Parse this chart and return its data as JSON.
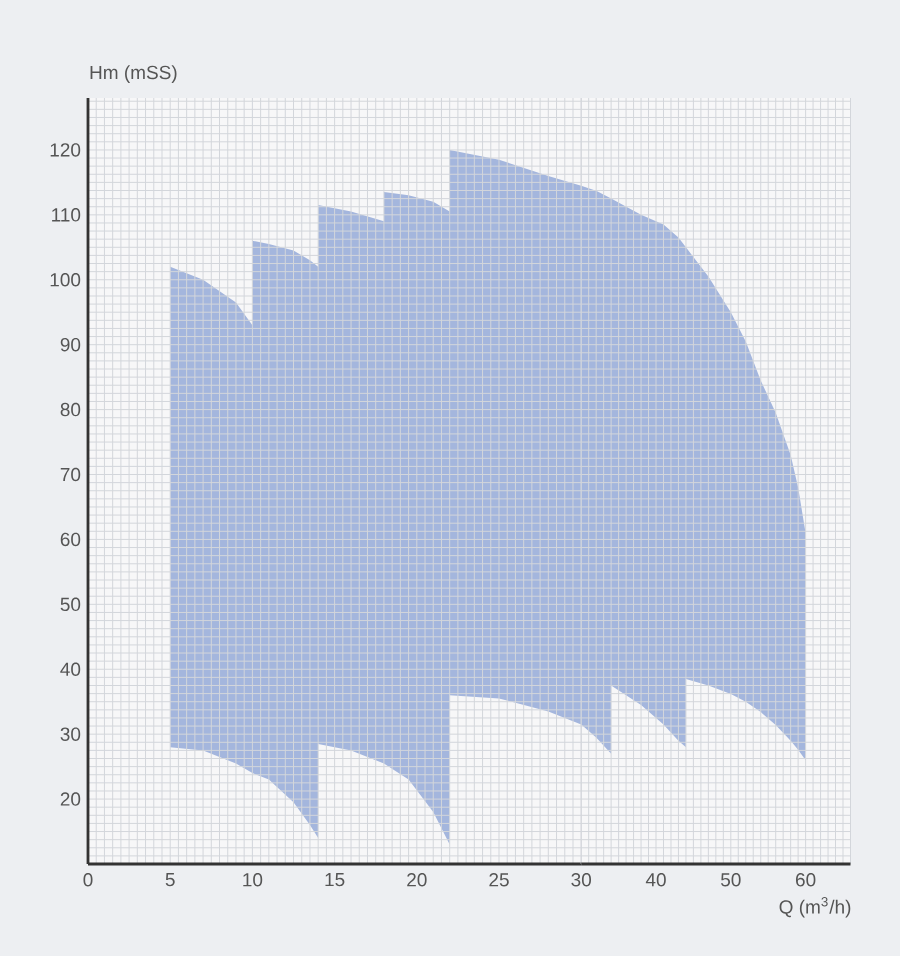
{
  "chart_data": [
    {
      "type": "area",
      "ylabel": "Hm (mSS)",
      "xlim": [
        0,
        30
      ],
      "ylim": [
        10,
        128
      ],
      "xticks": [
        0,
        5,
        10,
        15,
        20,
        25,
        30
      ],
      "yticks": [
        20,
        30,
        40,
        50,
        60,
        70,
        80,
        90,
        100,
        110,
        120
      ],
      "grid": true,
      "series": [
        {
          "color": "#a4b6dd",
          "x": [
            5,
            7,
            9,
            10,
            10,
            11,
            12.5,
            13.5,
            14,
            14,
            16,
            18,
            18,
            19.5,
            21,
            22,
            22,
            25,
            28,
            30
          ],
          "values": [
            null,
            null,
            null,
            null,
            null,
            null,
            null,
            null,
            null,
            null,
            null,
            null,
            null,
            null,
            null,
            null,
            null,
            null,
            null,
            null
          ],
          "upper": [
            102,
            100,
            96.5,
            93,
            106,
            105.5,
            104.5,
            103,
            102,
            111.5,
            110.5,
            109,
            113.5,
            113,
            112,
            110.5,
            120,
            118.5,
            116,
            114.5
          ],
          "lower": [
            28,
            27.5,
            25.5,
            24,
            24,
            23,
            19.5,
            16,
            14,
            28.5,
            27.5,
            25.5,
            25.5,
            23,
            18,
            13,
            36,
            35.5,
            33.5,
            31.5
          ]
        }
      ]
    },
    {
      "type": "area",
      "xlabel": "Q (m$^{3}$/h)",
      "xlim": [
        30,
        66
      ],
      "ylim": [
        10,
        128
      ],
      "xticks": [
        40,
        50,
        60
      ],
      "yticks": [
        20,
        30,
        40,
        50,
        60,
        70,
        80,
        90,
        100,
        110,
        120
      ],
      "tick_labels": "x",
      "grid": true,
      "series": [
        {
          "color": "#a4b6dd",
          "x": [
            30,
            32,
            34,
            34,
            38,
            41,
            43,
            44,
            44,
            47,
            50,
            52,
            54,
            56,
            58,
            59,
            60
          ],
          "values": [
            null,
            null,
            null,
            null,
            null,
            null,
            null,
            null,
            null,
            null,
            null,
            null,
            null,
            null,
            null,
            null,
            null
          ],
          "upper": [
            114.5,
            113.7,
            112.5,
            112.5,
            110,
            108.5,
            106.5,
            105,
            105,
            100.5,
            95,
            90.5,
            84.5,
            79.5,
            73,
            68,
            61
          ],
          "lower": [
            31.5,
            29.5,
            27,
            37.5,
            34.5,
            31.5,
            29,
            28,
            38.5,
            37.5,
            36.2,
            35,
            33.4,
            31.4,
            29,
            27.6,
            26
          ]
        }
      ]
    }
  ]
}
